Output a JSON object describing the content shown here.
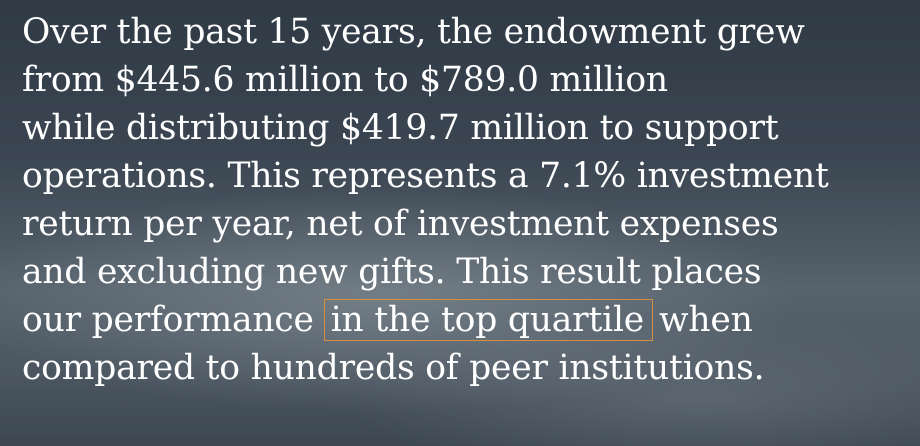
{
  "paragraph": {
    "lines": [
      "Over the past 15 years, the endowment grew",
      "from $445.6 million to $789.0 million",
      "while distributing $419.7 million to support",
      "operations. This represents a 7.1% investment",
      "return per year, net of investment expenses",
      "and excluding new gifts. This result places"
    ],
    "highlight_line": {
      "before": "our performance",
      "highlight": "in the top quartile",
      "after": "when"
    },
    "last_line": "compared to hundreds of peer institutions."
  }
}
